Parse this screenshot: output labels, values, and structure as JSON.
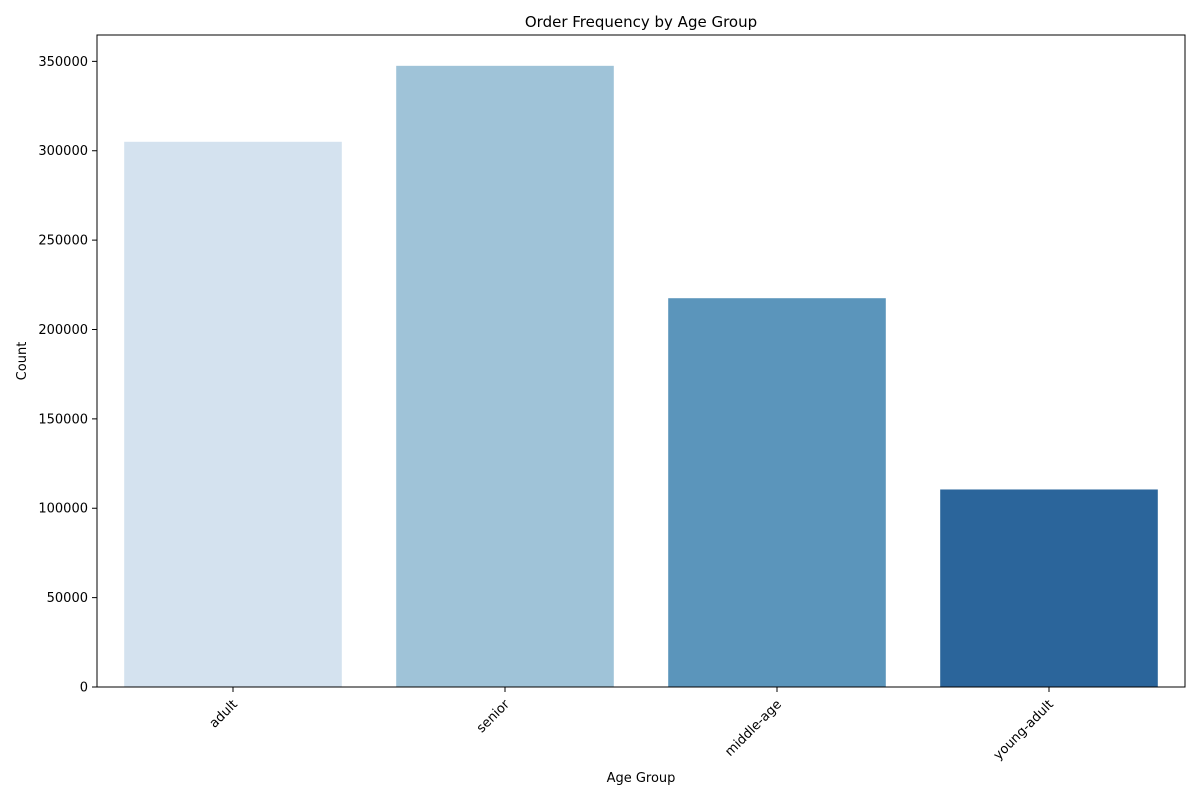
{
  "chart_data": {
    "type": "bar",
    "title": "Order Frequency by Age Group",
    "xlabel": "Age Group",
    "ylabel": "Count",
    "categories": [
      "adult",
      "senior",
      "middle-age",
      "young-adult"
    ],
    "values": [
      305000,
      347500,
      217500,
      110500
    ],
    "colors": [
      "#d4e2ef",
      "#9fc3d8",
      "#5b95bb",
      "#2b659b"
    ],
    "ylim": [
      0,
      364750
    ],
    "yticks": [
      0,
      50000,
      100000,
      150000,
      200000,
      250000,
      300000,
      350000
    ],
    "ytick_labels": [
      "0",
      "50000",
      "100000",
      "150000",
      "200000",
      "250000",
      "300000",
      "350000"
    ],
    "grid": false,
    "legend": "none"
  }
}
